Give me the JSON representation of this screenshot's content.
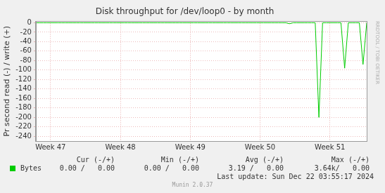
{
  "chart_data": {
    "type": "line",
    "title": "Disk throughput for /dev/loop0 - by month",
    "y_label": "Pr second read (-) / write (+)",
    "categories": [
      null,
      null,
      null,
      null,
      "Week 47",
      null,
      null,
      null,
      null,
      null,
      null,
      null,
      null,
      null,
      null,
      null,
      null,
      null,
      null,
      null,
      null,
      null,
      null,
      "Week 48",
      null,
      null,
      null,
      null,
      null,
      null,
      null,
      null,
      null,
      null,
      null,
      null,
      null,
      null,
      null,
      null,
      null,
      null,
      "Week 49",
      null,
      null,
      null,
      null,
      null,
      null,
      null,
      null,
      null,
      null,
      null,
      null,
      null,
      null,
      null,
      null,
      null,
      null,
      "Week 50",
      null,
      null,
      null,
      null,
      null,
      null,
      null,
      null,
      null,
      null,
      null,
      null,
      null,
      null,
      null,
      null,
      null,
      null,
      "Week 51",
      null,
      null,
      null,
      null,
      null,
      null,
      null,
      null,
      null,
      null
    ],
    "series": [
      {
        "name": "Bytes",
        "color": "#00cc00",
        "values": [
          0,
          0,
          0,
          0,
          0,
          0,
          0,
          0,
          0,
          0,
          0,
          0,
          0,
          0,
          0,
          0,
          0,
          0,
          0,
          0,
          0,
          0,
          0,
          0,
          0,
          0,
          0,
          0,
          0,
          0,
          0,
          0,
          0,
          0,
          0,
          0,
          0,
          0,
          0,
          0,
          0,
          0,
          0,
          0,
          0,
          0,
          0,
          0,
          0,
          0,
          0,
          0,
          0,
          0,
          0,
          0,
          0,
          0,
          0,
          0,
          0,
          0,
          0,
          0,
          0,
          0,
          0,
          0,
          0,
          -2,
          0,
          0,
          0,
          0,
          0,
          0,
          0,
          -200,
          0,
          0,
          0,
          0,
          0,
          0,
          -96,
          0,
          0,
          0,
          0,
          -88,
          0
        ]
      }
    ],
    "ylim": [
      -250,
      3
    ],
    "yticks": [
      -240,
      -220,
      -200,
      -180,
      -160,
      -140,
      -120,
      -100,
      -80,
      -60,
      -40,
      -20,
      0
    ],
    "grid": true,
    "summary": {
      "headers": [
        "Cur (-/+)",
        "Min (-/+)",
        "Avg (-/+)",
        "Max (-/+)"
      ],
      "rows": [
        [
          "0.00 /   0.00",
          "0.00 /   0.00",
          "3.19 /   0.00",
          "3.64k/   0.00"
        ]
      ]
    },
    "footer": "Last update: Sun Dec 22 03:55:17 2024",
    "credits": "Munin 2.0.37",
    "watermark": "RRDTOOL / TOBI OETIKER"
  }
}
